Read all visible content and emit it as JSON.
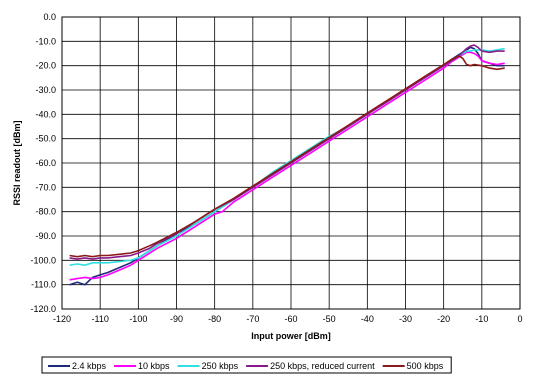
{
  "chart_data": {
    "type": "line",
    "xlabel": "Input power [dBm]",
    "ylabel": "RSSI readout [dBm]",
    "xlim": [
      -120,
      0
    ],
    "ylim": [
      -120,
      0
    ],
    "x_ticks": [
      "-120",
      "-110",
      "-100",
      "-90",
      "-80",
      "-70",
      "-60",
      "-50",
      "-40",
      "-30",
      "-20",
      "-10",
      "0"
    ],
    "y_ticks": [
      "0.0",
      "-10.0",
      "-20.0",
      "-30.0",
      "-40.0",
      "-50.0",
      "-60.0",
      "-70.0",
      "-80.0",
      "-90.0",
      "-100.0",
      "-110.0",
      "-120.0"
    ],
    "grid": true,
    "legend_position": "bottom",
    "series": [
      {
        "name": "2.4 kbps",
        "color": "#1f2a7a",
        "points": [
          [
            -118,
            -110
          ],
          [
            -116,
            -109
          ],
          [
            -114,
            -110
          ],
          [
            -112,
            -107
          ],
          [
            -110,
            -106
          ],
          [
            -108,
            -105
          ],
          [
            -105,
            -103
          ],
          [
            -102,
            -101
          ],
          [
            -100,
            -99
          ],
          [
            -95,
            -94
          ],
          [
            -90,
            -89
          ],
          [
            -85,
            -85
          ],
          [
            -80,
            -80
          ],
          [
            -75,
            -75
          ],
          [
            -70,
            -70
          ],
          [
            -65,
            -65
          ],
          [
            -60,
            -60
          ],
          [
            -55,
            -55
          ],
          [
            -50,
            -50
          ],
          [
            -45,
            -45
          ],
          [
            -40,
            -40
          ],
          [
            -35,
            -35
          ],
          [
            -30,
            -30
          ],
          [
            -25,
            -25
          ],
          [
            -20,
            -20
          ],
          [
            -18,
            -17.5
          ],
          [
            -16,
            -15.5
          ],
          [
            -14,
            -13.5
          ],
          [
            -13,
            -12.5
          ],
          [
            -12,
            -13
          ],
          [
            -11,
            -15
          ],
          [
            -10,
            -18
          ],
          [
            -8,
            -19
          ],
          [
            -6,
            -20
          ],
          [
            -4,
            -20
          ]
        ]
      },
      {
        "name": "10 kbps",
        "color": "#ff00ff",
        "points": [
          [
            -118,
            -108
          ],
          [
            -116,
            -107.5
          ],
          [
            -114,
            -107
          ],
          [
            -112,
            -107.5
          ],
          [
            -110,
            -107
          ],
          [
            -108,
            -106
          ],
          [
            -105,
            -104
          ],
          [
            -102,
            -102
          ],
          [
            -100,
            -100
          ],
          [
            -95,
            -95
          ],
          [
            -90,
            -91
          ],
          [
            -85,
            -86
          ],
          [
            -80,
            -81
          ],
          [
            -78,
            -80
          ],
          [
            -75,
            -76
          ],
          [
            -70,
            -71
          ],
          [
            -65,
            -66
          ],
          [
            -60,
            -61
          ],
          [
            -55,
            -56
          ],
          [
            -50,
            -51
          ],
          [
            -45,
            -46
          ],
          [
            -40,
            -41
          ],
          [
            -35,
            -36
          ],
          [
            -30,
            -31
          ],
          [
            -25,
            -26
          ],
          [
            -20,
            -21
          ],
          [
            -18,
            -18.5
          ],
          [
            -16,
            -16.5
          ],
          [
            -14,
            -14.5
          ],
          [
            -13,
            -14.5
          ],
          [
            -12,
            -15
          ],
          [
            -11,
            -16
          ],
          [
            -10,
            -18
          ],
          [
            -8,
            -19
          ],
          [
            -6,
            -19.5
          ],
          [
            -4,
            -19
          ]
        ]
      },
      {
        "name": "250 kbps",
        "color": "#33e0e0",
        "points": [
          [
            -118,
            -102
          ],
          [
            -116,
            -101.5
          ],
          [
            -114,
            -102
          ],
          [
            -112,
            -101
          ],
          [
            -110,
            -101
          ],
          [
            -108,
            -101
          ],
          [
            -105,
            -100.5
          ],
          [
            -102,
            -100
          ],
          [
            -100,
            -99
          ],
          [
            -97,
            -96
          ],
          [
            -95,
            -94
          ],
          [
            -90,
            -90
          ],
          [
            -85,
            -85
          ],
          [
            -80,
            -80
          ],
          [
            -75,
            -75
          ],
          [
            -70,
            -70
          ],
          [
            -65,
            -64
          ],
          [
            -60,
            -59
          ],
          [
            -55,
            -54
          ],
          [
            -50,
            -49
          ],
          [
            -45,
            -45
          ],
          [
            -40,
            -40
          ],
          [
            -35,
            -35
          ],
          [
            -30,
            -30
          ],
          [
            -25,
            -25
          ],
          [
            -20,
            -20
          ],
          [
            -18,
            -18
          ],
          [
            -16,
            -16
          ],
          [
            -14,
            -14
          ],
          [
            -13,
            -14
          ],
          [
            -12,
            -13.5
          ],
          [
            -10,
            -13.5
          ],
          [
            -8,
            -14
          ],
          [
            -6,
            -13.5
          ],
          [
            -4,
            -13
          ]
        ]
      },
      {
        "name": "250 kbps, reduced current",
        "color": "#8a1a8a",
        "points": [
          [
            -118,
            -99
          ],
          [
            -116,
            -99.5
          ],
          [
            -114,
            -99
          ],
          [
            -112,
            -99.5
          ],
          [
            -110,
            -99
          ],
          [
            -108,
            -99
          ],
          [
            -105,
            -98.5
          ],
          [
            -102,
            -98
          ],
          [
            -100,
            -97
          ],
          [
            -97,
            -95
          ],
          [
            -95,
            -93
          ],
          [
            -90,
            -89
          ],
          [
            -85,
            -84
          ],
          [
            -80,
            -79
          ],
          [
            -75,
            -75
          ],
          [
            -70,
            -70
          ],
          [
            -65,
            -65
          ],
          [
            -60,
            -60
          ],
          [
            -55,
            -55
          ],
          [
            -50,
            -50
          ],
          [
            -45,
            -45
          ],
          [
            -40,
            -40
          ],
          [
            -35,
            -35
          ],
          [
            -30,
            -30
          ],
          [
            -25,
            -25
          ],
          [
            -20,
            -20
          ],
          [
            -18,
            -18
          ],
          [
            -16,
            -16
          ],
          [
            -14,
            -13
          ],
          [
            -13,
            -12
          ],
          [
            -12,
            -11.5
          ],
          [
            -11,
            -12.5
          ],
          [
            -10,
            -14
          ],
          [
            -8,
            -14.5
          ],
          [
            -6,
            -14
          ],
          [
            -4,
            -14
          ]
        ]
      },
      {
        "name": "500 kbps",
        "color": "#8b1a1a",
        "points": [
          [
            -118,
            -98
          ],
          [
            -116,
            -98.5
          ],
          [
            -114,
            -98
          ],
          [
            -112,
            -98.5
          ],
          [
            -110,
            -98
          ],
          [
            -108,
            -98
          ],
          [
            -105,
            -97.5
          ],
          [
            -102,
            -97
          ],
          [
            -100,
            -96
          ],
          [
            -97,
            -94
          ],
          [
            -95,
            -92.5
          ],
          [
            -90,
            -88.5
          ],
          [
            -85,
            -84
          ],
          [
            -80,
            -79
          ],
          [
            -75,
            -74.5
          ],
          [
            -70,
            -69.5
          ],
          [
            -65,
            -64.5
          ],
          [
            -60,
            -59.5
          ],
          [
            -55,
            -54.5
          ],
          [
            -50,
            -49.5
          ],
          [
            -45,
            -44.5
          ],
          [
            -40,
            -39.5
          ],
          [
            -35,
            -34.5
          ],
          [
            -30,
            -29.5
          ],
          [
            -25,
            -24.5
          ],
          [
            -20,
            -19.5
          ],
          [
            -18,
            -17.5
          ],
          [
            -16,
            -16
          ],
          [
            -15,
            -17
          ],
          [
            -14,
            -19.5
          ],
          [
            -13,
            -20
          ],
          [
            -12,
            -19.5
          ],
          [
            -10,
            -20
          ],
          [
            -8,
            -21
          ],
          [
            -6,
            -21.5
          ],
          [
            -4,
            -21
          ]
        ]
      }
    ]
  }
}
